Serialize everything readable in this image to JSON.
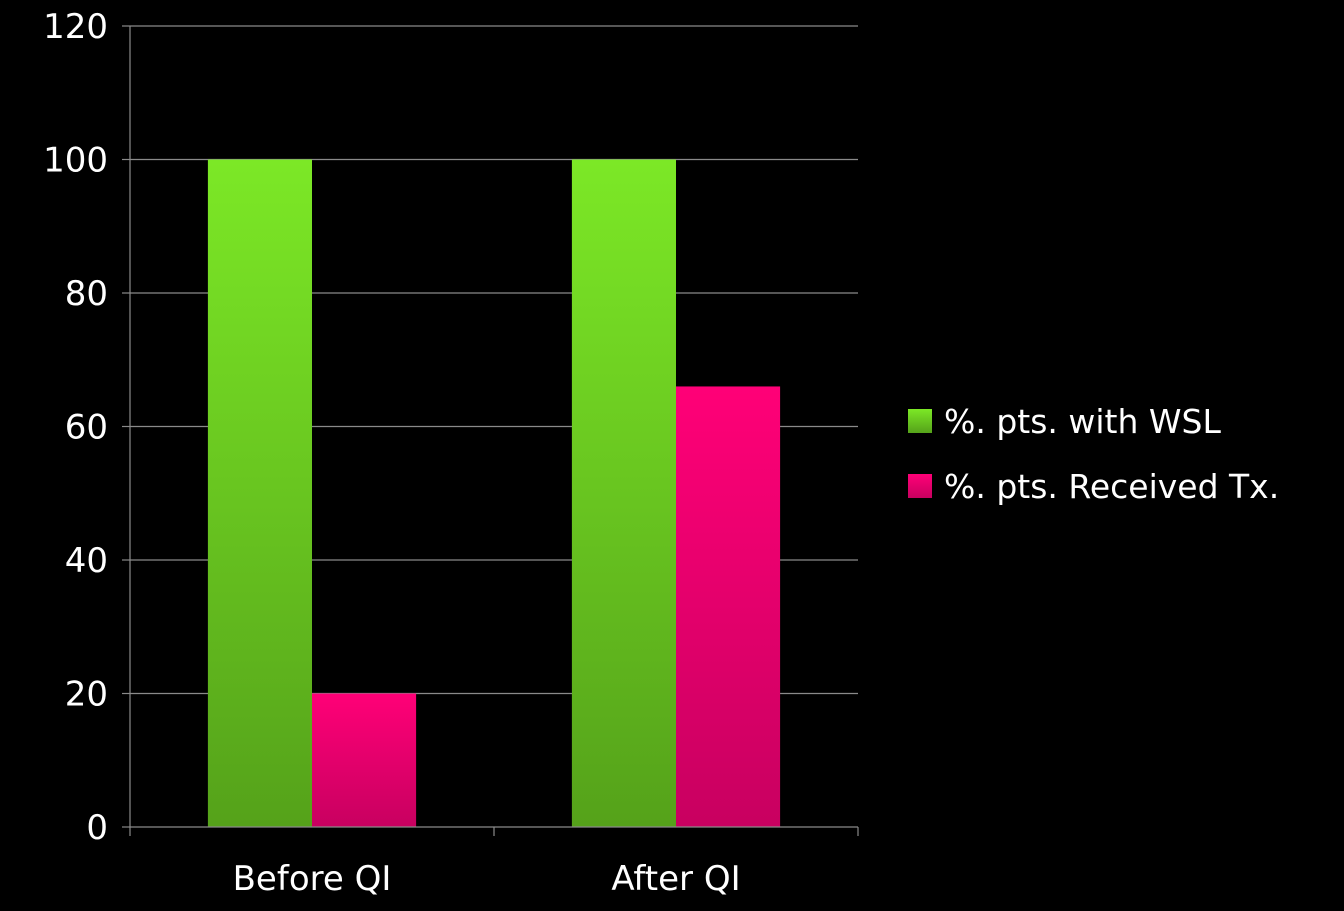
{
  "chart_data": {
    "type": "bar",
    "categories": [
      "Before QI",
      "After QI"
    ],
    "series": [
      {
        "name": "%. pts. with WSL",
        "values": [
          100,
          100
        ],
        "color_top": "#7ce826",
        "color_bottom": "#55a21a"
      },
      {
        "name": "%. pts. Received Tx.",
        "values": [
          20,
          66
        ],
        "color_top": "#ff0077",
        "color_bottom": "#c80060"
      }
    ],
    "ylim": [
      0,
      120
    ],
    "yticks": [
      0,
      20,
      40,
      60,
      80,
      100,
      120
    ],
    "grid": true,
    "legend_position": "right",
    "background": "#000000",
    "gridline_color": "#8a8a8a",
    "text_color": "#ffffff",
    "title": "",
    "xlabel": "",
    "ylabel": ""
  }
}
